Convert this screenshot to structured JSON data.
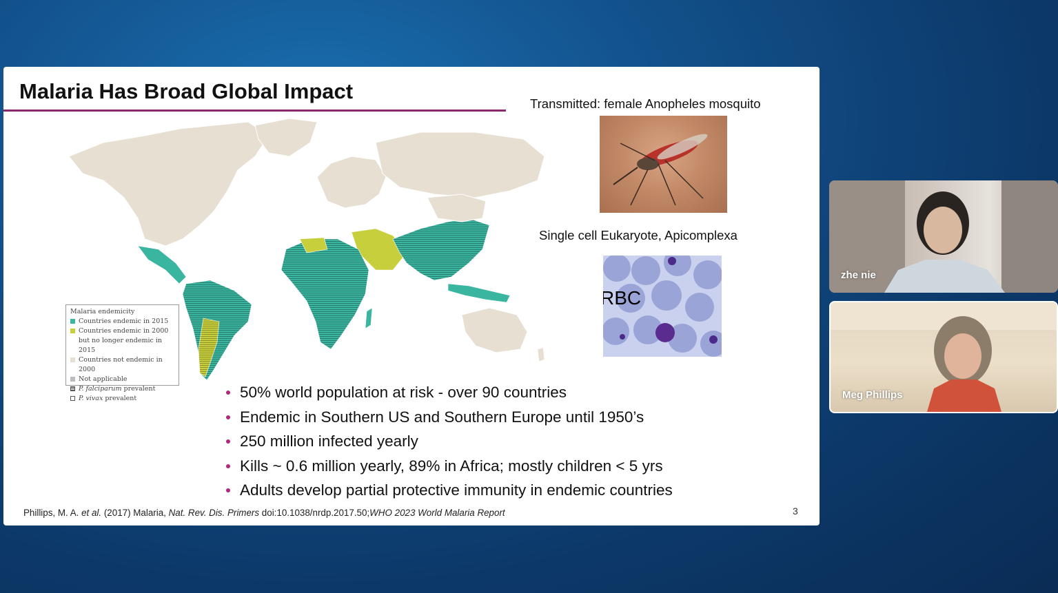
{
  "slide": {
    "title": "Malaria Has Broad Global Impact",
    "transmitted_caption": "Transmitted: female Anopheles mosquito",
    "eukaryote_caption": "Single cell Eukaryote, Apicomplexa",
    "rbc_label": "RBC",
    "bullets": [
      "50% world population at risk - over 90 countries",
      "Endemic in Southern US and Southern Europe until 1950’s",
      "250 million infected yearly",
      "Kills ~ 0.6 million yearly, 89% in Africa; mostly children < 5 yrs",
      "Adults develop partial protective immunity in endemic countries"
    ],
    "citation": {
      "author": "Phillips, M. A. ",
      "etal": "et al.",
      "year_title": " (2017) Malaria, ",
      "journal": "Nat. Rev. Dis. Primers",
      "doi": " doi:10.1038/nrdp.2017.50;",
      "report": "WHO 2023 World Malaria Report"
    },
    "page_number": "3"
  },
  "legend": {
    "title": "Malaria endemicity",
    "rows": [
      {
        "text": "Countries endemic in 2015"
      },
      {
        "text": "Countries endemic in 2000"
      },
      {
        "text": "but no longer endemic in 2015"
      },
      {
        "text": "Countries not endemic in 2000"
      },
      {
        "text": "Not applicable"
      },
      {
        "italic": "P. falciparum",
        "text": " prevalent"
      },
      {
        "italic": "P. vivax",
        "text": " prevalent"
      }
    ]
  },
  "colors": {
    "endemic_2015": "#3ab5a0",
    "endemic_2000": "#c8cf3c",
    "not_endemic": "#e6dfd2",
    "not_applicable": "#b9bcc0",
    "bullet": "#b0287c",
    "title_rule": "#8a2a6d"
  },
  "participants": [
    {
      "name": "zhe nie"
    },
    {
      "name": "Meg Phillips"
    }
  ]
}
